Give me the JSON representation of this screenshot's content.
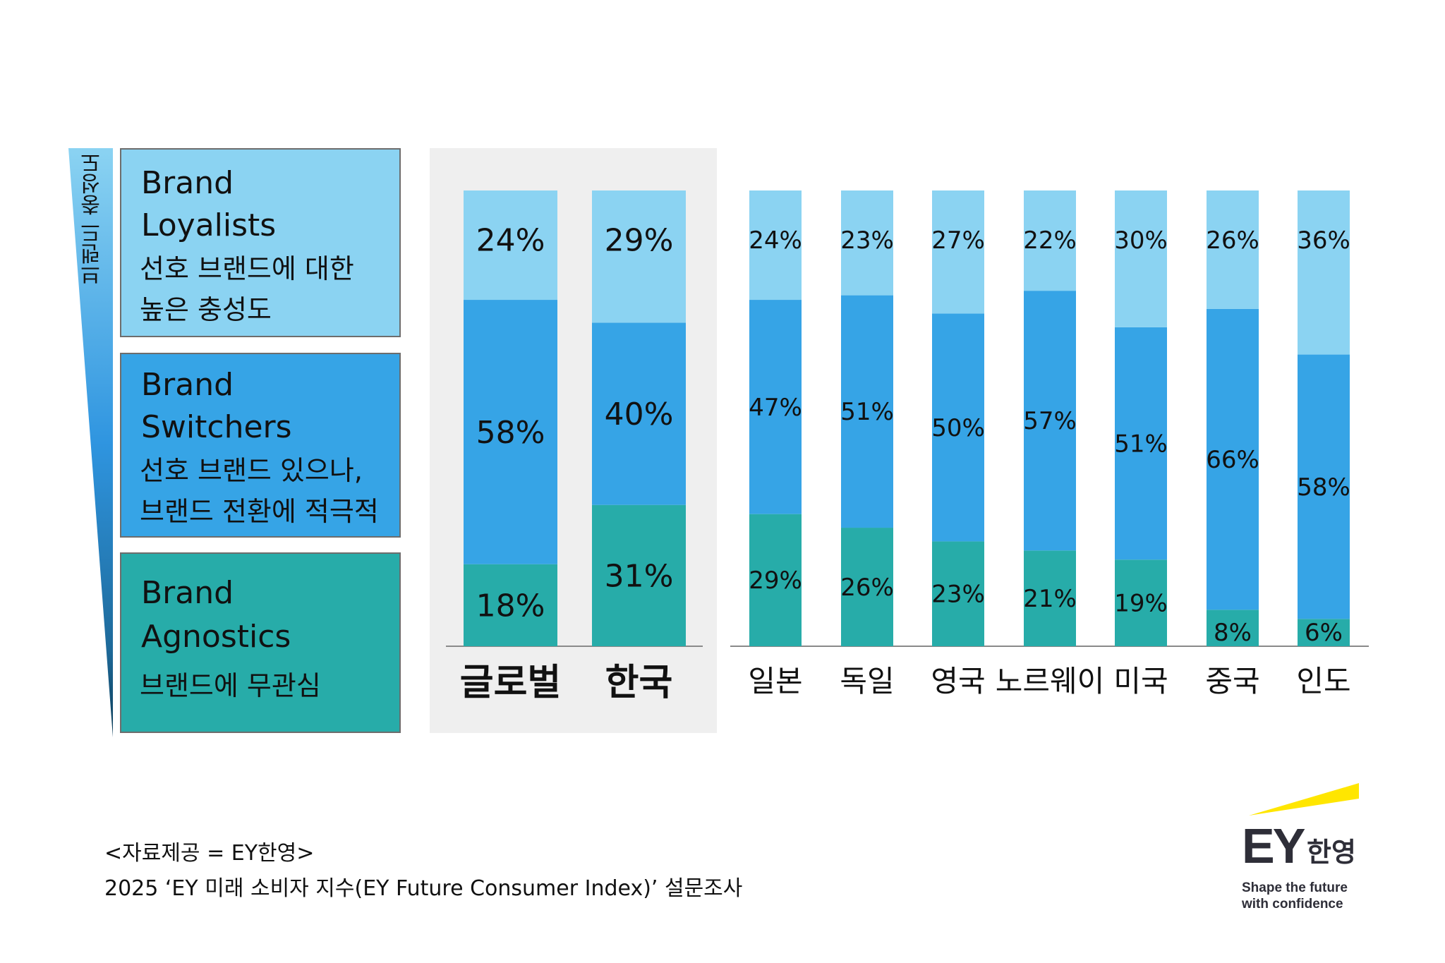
{
  "axis_label": "브랜드 충성도",
  "legend": [
    {
      "title_line1": "Brand",
      "title_line2": "Loyalists",
      "desc_line1": "선호 브랜드에 대한",
      "desc_line2": "높은 충성도"
    },
    {
      "title_line1": "Brand",
      "title_line2": "Switchers",
      "desc_line1": "선호 브랜드 있으나,",
      "desc_line2": "브랜드 전환에 적극적"
    },
    {
      "title_line1": "Brand",
      "title_line2": "Agnostics",
      "desc_line1": "브랜드에 무관심",
      "desc_line2": ""
    }
  ],
  "colors": {
    "loyalists": "#8bd3f2",
    "switchers": "#36a4e6",
    "agnostics": "#27aca9",
    "highlight_bg": "#efefef",
    "logo_yellow": "#ffe600",
    "logo_text": "#2e2e38"
  },
  "chart_data": {
    "type": "bar",
    "stacked": true,
    "normalized": true,
    "categories": [
      "글로벌",
      "한국",
      "일본",
      "독일",
      "영국",
      "노르웨이",
      "미국",
      "중국",
      "인도"
    ],
    "highlighted_categories": [
      "글로벌",
      "한국"
    ],
    "series": [
      {
        "name": "Brand Agnostics",
        "values": [
          18,
          31,
          29,
          26,
          23,
          21,
          19,
          8,
          6
        ]
      },
      {
        "name": "Brand Switchers",
        "values": [
          58,
          40,
          47,
          51,
          50,
          57,
          51,
          66,
          58
        ]
      },
      {
        "name": "Brand Loyalists",
        "values": [
          24,
          29,
          24,
          23,
          27,
          22,
          30,
          26,
          36
        ]
      }
    ],
    "value_suffix": "%",
    "ylim": [
      0,
      100
    ],
    "title": "",
    "xlabel": "",
    "ylabel": "브랜드 충성도",
    "legend_position": "left"
  },
  "source": {
    "line1": "<자료제공 = EY한영>",
    "line2": "2025 ‘EY 미래 소비자 지수(EY Future Consumer Index)’ 설문조사"
  },
  "logo": {
    "brand": "EY",
    "brand_ko": "한영",
    "tagline_line1": "Shape the future",
    "tagline_line2": "with confidence"
  }
}
